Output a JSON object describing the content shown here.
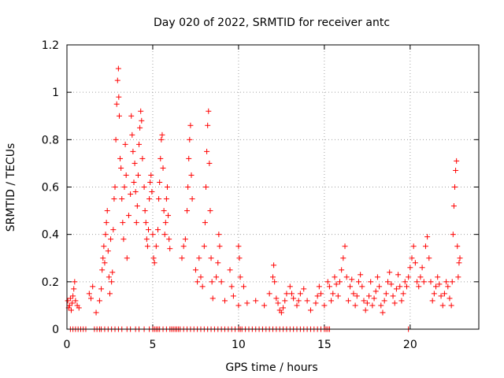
{
  "chart_data": {
    "type": "scatter",
    "title": "Day 020 of 2022, SRMTID for receiver antc",
    "xlabel": "GPS time / hours",
    "ylabel": "SRMTID / TECUs",
    "xlim": [
      0,
      24
    ],
    "ylim": [
      0,
      1.2
    ],
    "grid": true,
    "marker": "+",
    "color": "#ff0000",
    "xticks": [
      0,
      5,
      10,
      15,
      20
    ],
    "xtick_labels": [
      "0",
      "5",
      "10",
      "15",
      "20"
    ],
    "yticks": [
      0,
      0.2,
      0.4,
      0.6,
      0.8,
      1.0,
      1.2
    ],
    "ytick_labels": [
      "0",
      "0.2",
      "0.4",
      "0.6",
      "0.8",
      "1",
      "1.2"
    ],
    "series": [
      {
        "name": "SRMTID",
        "points": [
          [
            0.05,
            0.12
          ],
          [
            0.1,
            0.09
          ],
          [
            0.15,
            0.1
          ],
          [
            0.2,
            0.13
          ],
          [
            0.25,
            0.08
          ],
          [
            0.3,
            0.11
          ],
          [
            0.35,
            0.14
          ],
          [
            0.4,
            0.17
          ],
          [
            0.45,
            0.2
          ],
          [
            0.5,
            0.12
          ],
          [
            0.6,
            0.1
          ],
          [
            0.7,
            0.09
          ],
          [
            1.3,
            0.15
          ],
          [
            1.4,
            0.13
          ],
          [
            1.5,
            0.18
          ],
          [
            1.7,
            0.07
          ],
          [
            1.9,
            0.12
          ],
          [
            2.0,
            0.17
          ],
          [
            2.05,
            0.25
          ],
          [
            2.1,
            0.3
          ],
          [
            2.15,
            0.35
          ],
          [
            2.2,
            0.28
          ],
          [
            2.25,
            0.4
          ],
          [
            2.3,
            0.45
          ],
          [
            2.35,
            0.5
          ],
          [
            2.4,
            0.33
          ],
          [
            2.45,
            0.22
          ],
          [
            2.5,
            0.15
          ],
          [
            2.55,
            0.38
          ],
          [
            2.6,
            0.2
          ],
          [
            2.65,
            0.24
          ],
          [
            2.7,
            0.42
          ],
          [
            2.75,
            0.55
          ],
          [
            2.8,
            0.6
          ],
          [
            2.85,
            0.8
          ],
          [
            2.9,
            0.95
          ],
          [
            2.95,
            1.05
          ],
          [
            3.0,
            1.1
          ],
          [
            3.02,
            0.98
          ],
          [
            3.05,
            0.9
          ],
          [
            3.1,
            0.72
          ],
          [
            3.15,
            0.68
          ],
          [
            3.2,
            0.55
          ],
          [
            3.25,
            0.45
          ],
          [
            3.3,
            0.38
          ],
          [
            3.35,
            0.6
          ],
          [
            3.4,
            0.78
          ],
          [
            3.45,
            0.65
          ],
          [
            3.5,
            0.3
          ],
          [
            3.6,
            0.48
          ],
          [
            3.7,
            0.57
          ],
          [
            3.75,
            0.9
          ],
          [
            3.8,
            0.82
          ],
          [
            3.85,
            0.75
          ],
          [
            3.9,
            0.62
          ],
          [
            3.95,
            0.7
          ],
          [
            4.0,
            0.58
          ],
          [
            4.05,
            0.45
          ],
          [
            4.1,
            0.52
          ],
          [
            4.15,
            0.65
          ],
          [
            4.2,
            0.78
          ],
          [
            4.25,
            0.85
          ],
          [
            4.3,
            0.92
          ],
          [
            4.35,
            0.88
          ],
          [
            4.4,
            0.72
          ],
          [
            4.5,
            0.6
          ],
          [
            4.55,
            0.5
          ],
          [
            4.6,
            0.45
          ],
          [
            4.65,
            0.38
          ],
          [
            4.7,
            0.35
          ],
          [
            4.75,
            0.42
          ],
          [
            4.8,
            0.55
          ],
          [
            4.85,
            0.62
          ],
          [
            4.9,
            0.65
          ],
          [
            4.95,
            0.58
          ],
          [
            5.0,
            0.4
          ],
          [
            5.05,
            0.3
          ],
          [
            5.1,
            0.28
          ],
          [
            5.2,
            0.35
          ],
          [
            5.3,
            0.42
          ],
          [
            5.35,
            0.55
          ],
          [
            5.4,
            0.62
          ],
          [
            5.45,
            0.72
          ],
          [
            5.5,
            0.8
          ],
          [
            5.55,
            0.82
          ],
          [
            5.6,
            0.68
          ],
          [
            5.65,
            0.5
          ],
          [
            5.7,
            0.4
          ],
          [
            5.75,
            0.45
          ],
          [
            5.8,
            0.55
          ],
          [
            5.85,
            0.6
          ],
          [
            5.9,
            0.48
          ],
          [
            5.95,
            0.38
          ],
          [
            6.0,
            0.34
          ],
          [
            6.7,
            0.3
          ],
          [
            6.8,
            0.35
          ],
          [
            6.9,
            0.38
          ],
          [
            7.0,
            0.5
          ],
          [
            7.05,
            0.6
          ],
          [
            7.1,
            0.72
          ],
          [
            7.15,
            0.8
          ],
          [
            7.2,
            0.86
          ],
          [
            7.25,
            0.65
          ],
          [
            7.3,
            0.55
          ],
          [
            7.5,
            0.25
          ],
          [
            7.6,
            0.2
          ],
          [
            7.7,
            0.3
          ],
          [
            7.8,
            0.22
          ],
          [
            7.9,
            0.18
          ],
          [
            8.0,
            0.35
          ],
          [
            8.05,
            0.45
          ],
          [
            8.1,
            0.6
          ],
          [
            8.15,
            0.75
          ],
          [
            8.2,
            0.86
          ],
          [
            8.25,
            0.92
          ],
          [
            8.3,
            0.7
          ],
          [
            8.35,
            0.5
          ],
          [
            8.4,
            0.3
          ],
          [
            8.45,
            0.2
          ],
          [
            8.5,
            0.13
          ],
          [
            8.7,
            0.22
          ],
          [
            8.8,
            0.28
          ],
          [
            8.85,
            0.4
          ],
          [
            8.9,
            0.35
          ],
          [
            9.0,
            0.2
          ],
          [
            9.2,
            0.12
          ],
          [
            9.5,
            0.25
          ],
          [
            9.6,
            0.18
          ],
          [
            9.7,
            0.14
          ],
          [
            10.0,
            0.35
          ],
          [
            10.05,
            0.3
          ],
          [
            10.1,
            0.22
          ],
          [
            10.3,
            0.18
          ],
          [
            10.5,
            0.11
          ],
          [
            10.0,
            0.1
          ],
          [
            11.0,
            0.12
          ],
          [
            11.5,
            0.1
          ],
          [
            11.8,
            0.15
          ],
          [
            12.0,
            0.22
          ],
          [
            12.05,
            0.27
          ],
          [
            12.1,
            0.2
          ],
          [
            12.2,
            0.13
          ],
          [
            12.3,
            0.11
          ],
          [
            12.4,
            0.08
          ],
          [
            12.5,
            0.07
          ],
          [
            12.6,
            0.09
          ],
          [
            12.7,
            0.12
          ],
          [
            12.8,
            0.15
          ],
          [
            13.0,
            0.18
          ],
          [
            13.1,
            0.15
          ],
          [
            13.2,
            0.13
          ],
          [
            13.4,
            0.1
          ],
          [
            13.5,
            0.12
          ],
          [
            13.6,
            0.15
          ],
          [
            13.8,
            0.17
          ],
          [
            14.0,
            0.12
          ],
          [
            14.2,
            0.08
          ],
          [
            14.5,
            0.11
          ],
          [
            14.6,
            0.14
          ],
          [
            14.7,
            0.18
          ],
          [
            14.8,
            0.15
          ],
          [
            15.0,
            0.1
          ],
          [
            15.2,
            0.2
          ],
          [
            15.3,
            0.18
          ],
          [
            15.4,
            0.12
          ],
          [
            15.5,
            0.15
          ],
          [
            15.6,
            0.22
          ],
          [
            15.7,
            0.19
          ],
          [
            15.8,
            0.14
          ],
          [
            15.9,
            0.2
          ],
          [
            16.0,
            0.25
          ],
          [
            16.1,
            0.3
          ],
          [
            16.2,
            0.35
          ],
          [
            16.3,
            0.22
          ],
          [
            16.4,
            0.12
          ],
          [
            16.5,
            0.18
          ],
          [
            16.6,
            0.21
          ],
          [
            16.7,
            0.15
          ],
          [
            16.8,
            0.1
          ],
          [
            16.9,
            0.14
          ],
          [
            17.0,
            0.2
          ],
          [
            17.1,
            0.23
          ],
          [
            17.2,
            0.18
          ],
          [
            17.3,
            0.12
          ],
          [
            17.4,
            0.08
          ],
          [
            17.5,
            0.11
          ],
          [
            17.6,
            0.14
          ],
          [
            17.7,
            0.2
          ],
          [
            17.8,
            0.1
          ],
          [
            17.9,
            0.13
          ],
          [
            18.0,
            0.16
          ],
          [
            18.1,
            0.22
          ],
          [
            18.2,
            0.18
          ],
          [
            18.3,
            0.1
          ],
          [
            18.4,
            0.07
          ],
          [
            18.5,
            0.12
          ],
          [
            18.6,
            0.15
          ],
          [
            18.7,
            0.2
          ],
          [
            18.8,
            0.24
          ],
          [
            18.9,
            0.19
          ],
          [
            19.0,
            0.14
          ],
          [
            19.1,
            0.11
          ],
          [
            19.2,
            0.17
          ],
          [
            19.3,
            0.23
          ],
          [
            19.4,
            0.18
          ],
          [
            19.5,
            0.12
          ],
          [
            19.6,
            0.15
          ],
          [
            19.7,
            0.2
          ],
          [
            19.8,
            0.18
          ],
          [
            19.9,
            0.22
          ],
          [
            20.0,
            0.26
          ],
          [
            20.1,
            0.3
          ],
          [
            20.2,
            0.35
          ],
          [
            20.3,
            0.28
          ],
          [
            20.4,
            0.2
          ],
          [
            20.5,
            0.18
          ],
          [
            20.6,
            0.22
          ],
          [
            20.7,
            0.26
          ],
          [
            20.8,
            0.2
          ],
          [
            20.9,
            0.35
          ],
          [
            21.0,
            0.39
          ],
          [
            21.1,
            0.3
          ],
          [
            21.2,
            0.2
          ],
          [
            21.3,
            0.12
          ],
          [
            21.4,
            0.15
          ],
          [
            21.5,
            0.18
          ],
          [
            21.6,
            0.22
          ],
          [
            21.7,
            0.19
          ],
          [
            21.8,
            0.14
          ],
          [
            21.9,
            0.1
          ],
          [
            22.0,
            0.15
          ],
          [
            22.1,
            0.2
          ],
          [
            22.2,
            0.18
          ],
          [
            22.3,
            0.13
          ],
          [
            22.4,
            0.1
          ],
          [
            22.45,
            0.2
          ],
          [
            22.5,
            0.4
          ],
          [
            22.55,
            0.52
          ],
          [
            22.6,
            0.6
          ],
          [
            22.65,
            0.67
          ],
          [
            22.7,
            0.71
          ],
          [
            22.75,
            0.35
          ],
          [
            22.8,
            0.22
          ],
          [
            22.85,
            0.28
          ],
          [
            22.9,
            0.3
          ]
        ]
      }
    ],
    "zero_band_points": [
      0.2,
      0.35,
      0.5,
      0.65,
      0.8,
      0.95,
      1.1,
      1.6,
      1.75,
      1.9,
      2.0,
      2.2,
      2.4,
      2.6,
      2.8,
      3.0,
      3.2,
      3.5,
      3.7,
      4.0,
      4.2,
      4.5,
      4.8,
      5.0,
      5.1,
      5.2,
      5.3,
      5.4,
      5.6,
      5.8,
      6.0,
      6.1,
      6.2,
      6.3,
      6.4,
      6.5,
      6.6,
      6.8,
      7.0,
      7.2,
      7.4,
      7.6,
      7.8,
      8.0,
      8.2,
      8.4,
      8.6,
      8.8,
      9.0,
      9.2,
      9.4,
      9.6,
      9.8,
      10.0,
      10.1,
      10.2,
      10.4,
      10.6,
      10.8,
      11.0,
      11.2,
      11.4,
      11.6,
      11.8,
      12.0,
      12.2,
      12.4,
      12.6,
      12.8,
      13.0,
      13.2,
      13.4,
      13.6,
      13.8,
      14.0,
      14.2,
      14.4,
      14.6,
      14.8,
      15.0,
      15.1,
      15.2,
      15.3,
      19.9
    ]
  }
}
